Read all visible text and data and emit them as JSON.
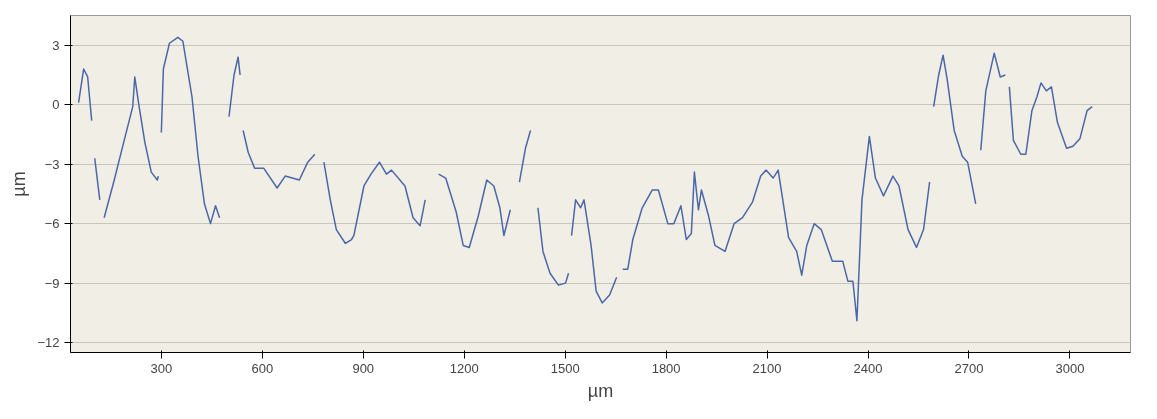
{
  "chart_data": {
    "type": "line",
    "xlabel": "µm",
    "ylabel": "µm",
    "xlim": [
      30,
      3180
    ],
    "ylim": [
      -12.5,
      4.5
    ],
    "xticks": [
      300,
      600,
      900,
      1200,
      1500,
      1800,
      2100,
      2400,
      2700,
      3000
    ],
    "yticks": [
      3,
      0,
      -3,
      -6,
      -9,
      -12
    ],
    "grid": "y",
    "marker": "none",
    "line_style": "solid",
    "series": [
      {
        "color": "#4a68a8",
        "x": [
          54,
          69,
          81,
          93,
          95,
          102,
          117,
          120,
          130,
          160,
          188,
          215,
          221,
          233,
          251,
          270,
          288,
          291,
          295,
          300,
          306,
          324,
          349,
          364,
          391,
          409,
          428,
          446,
          461,
          473,
          490,
          501,
          516,
          528,
          534,
          538,
          543,
          558,
          577,
          604,
          644,
          668,
          689,
          710,
          735,
          756,
          760,
          783,
          802,
          820,
          847,
          865,
          872,
          902,
          923,
          948,
          969,
          984,
          1024,
          1048,
          1069,
          1084,
          1100,
          1124,
          1145,
          1176,
          1197,
          1215,
          1242,
          1267,
          1288,
          1306,
          1318,
          1337,
          1350,
          1364,
          1382,
          1397,
          1410,
          1419,
          1434,
          1455,
          1480,
          1501,
          1510,
          1515,
          1519,
          1531,
          1546,
          1556,
          1577,
          1592,
          1610,
          1632,
          1653,
          1660,
          1671,
          1686,
          1701,
          1729,
          1759,
          1777,
          1805,
          1823,
          1844,
          1860,
          1875,
          1884,
          1896,
          1905,
          1926,
          1945,
          1975,
          2002,
          2027,
          2057,
          2081,
          2097,
          2118,
          2133,
          2164,
          2188,
          2203,
          2218,
          2240,
          2261,
          2294,
          2325,
          2340,
          2355,
          2367,
          2382,
          2404,
          2422,
          2446,
          2474,
          2492,
          2519,
          2544,
          2565,
          2583,
          2590,
          2595,
          2610,
          2623,
          2635,
          2656,
          2680,
          2696,
          2720,
          2728,
          2735,
          2750,
          2775,
          2793,
          2808,
          2814,
          2820,
          2832,
          2854,
          2869,
          2887,
          2902,
          2914,
          2930,
          2945,
          2963,
          2990,
          3009,
          3030,
          3051,
          3066
        ],
        "values": [
          0.1,
          1.8,
          1.4,
          -0.8,
          null,
          -2.7,
          -4.8,
          null,
          -5.7,
          -3.8,
          -1.9,
          -0.1,
          1.4,
          0,
          -1.9,
          -3.4,
          -3.8,
          -3.6,
          null,
          -1.4,
          1.8,
          3.1,
          3.4,
          3.2,
          0.4,
          -2.6,
          -5.0,
          -6.0,
          -5.1,
          -5.7,
          null,
          -0.6,
          1.5,
          2.4,
          1.5,
          null,
          -1.3,
          -2.4,
          -3.2,
          -3.2,
          -4.2,
          -3.6,
          -3.7,
          -3.8,
          -2.9,
          -2.5,
          null,
          -2.9,
          -4.8,
          -6.3,
          -7.0,
          -6.8,
          -6.6,
          -4.1,
          -3.5,
          -2.9,
          -3.5,
          -3.3,
          -4.1,
          -5.7,
          -6.1,
          -4.8,
          null,
          -3.5,
          -3.7,
          -5.4,
          -7.1,
          -7.2,
          -5.6,
          -3.8,
          -4.1,
          -5.2,
          -6.6,
          -5.3,
          null,
          -3.9,
          -2.2,
          -1.3,
          null,
          -5.2,
          -7.4,
          -8.5,
          -9.1,
          -9.0,
          -8.5,
          null,
          -6.6,
          -4.8,
          -5.2,
          -4.8,
          -7.1,
          -9.4,
          -10.0,
          -9.6,
          -8.7,
          null,
          -8.3,
          -8.3,
          -6.8,
          -5.2,
          -4.3,
          -4.3,
          -6.0,
          -6.0,
          -5.1,
          -6.8,
          -6.5,
          -3.4,
          -5.3,
          -4.3,
          -5.6,
          -7.1,
          -7.4,
          -6.0,
          -5.7,
          -4.9,
          -3.6,
          -3.3,
          -3.7,
          -3.3,
          -6.7,
          -7.4,
          -8.6,
          -7.1,
          -6.0,
          -6.3,
          -7.9,
          -7.9,
          -8.9,
          -8.9,
          -10.9,
          -4.8,
          -1.6,
          -3.7,
          -4.6,
          -3.6,
          -4.1,
          -6.3,
          -7.2,
          -6.3,
          -3.9,
          null,
          -0.1,
          1.5,
          2.5,
          1.3,
          -1.3,
          -2.6,
          -2.9,
          -5.0,
          null,
          -2.3,
          0.7,
          2.6,
          1.4,
          1.5,
          null,
          0.9,
          -1.8,
          -2.5,
          -2.5,
          -0.3,
          0.4,
          1.1,
          0.7,
          0.9,
          -0.9,
          -2.2,
          -2.1,
          -1.7,
          -0.3,
          -0.1
        ]
      }
    ]
  }
}
